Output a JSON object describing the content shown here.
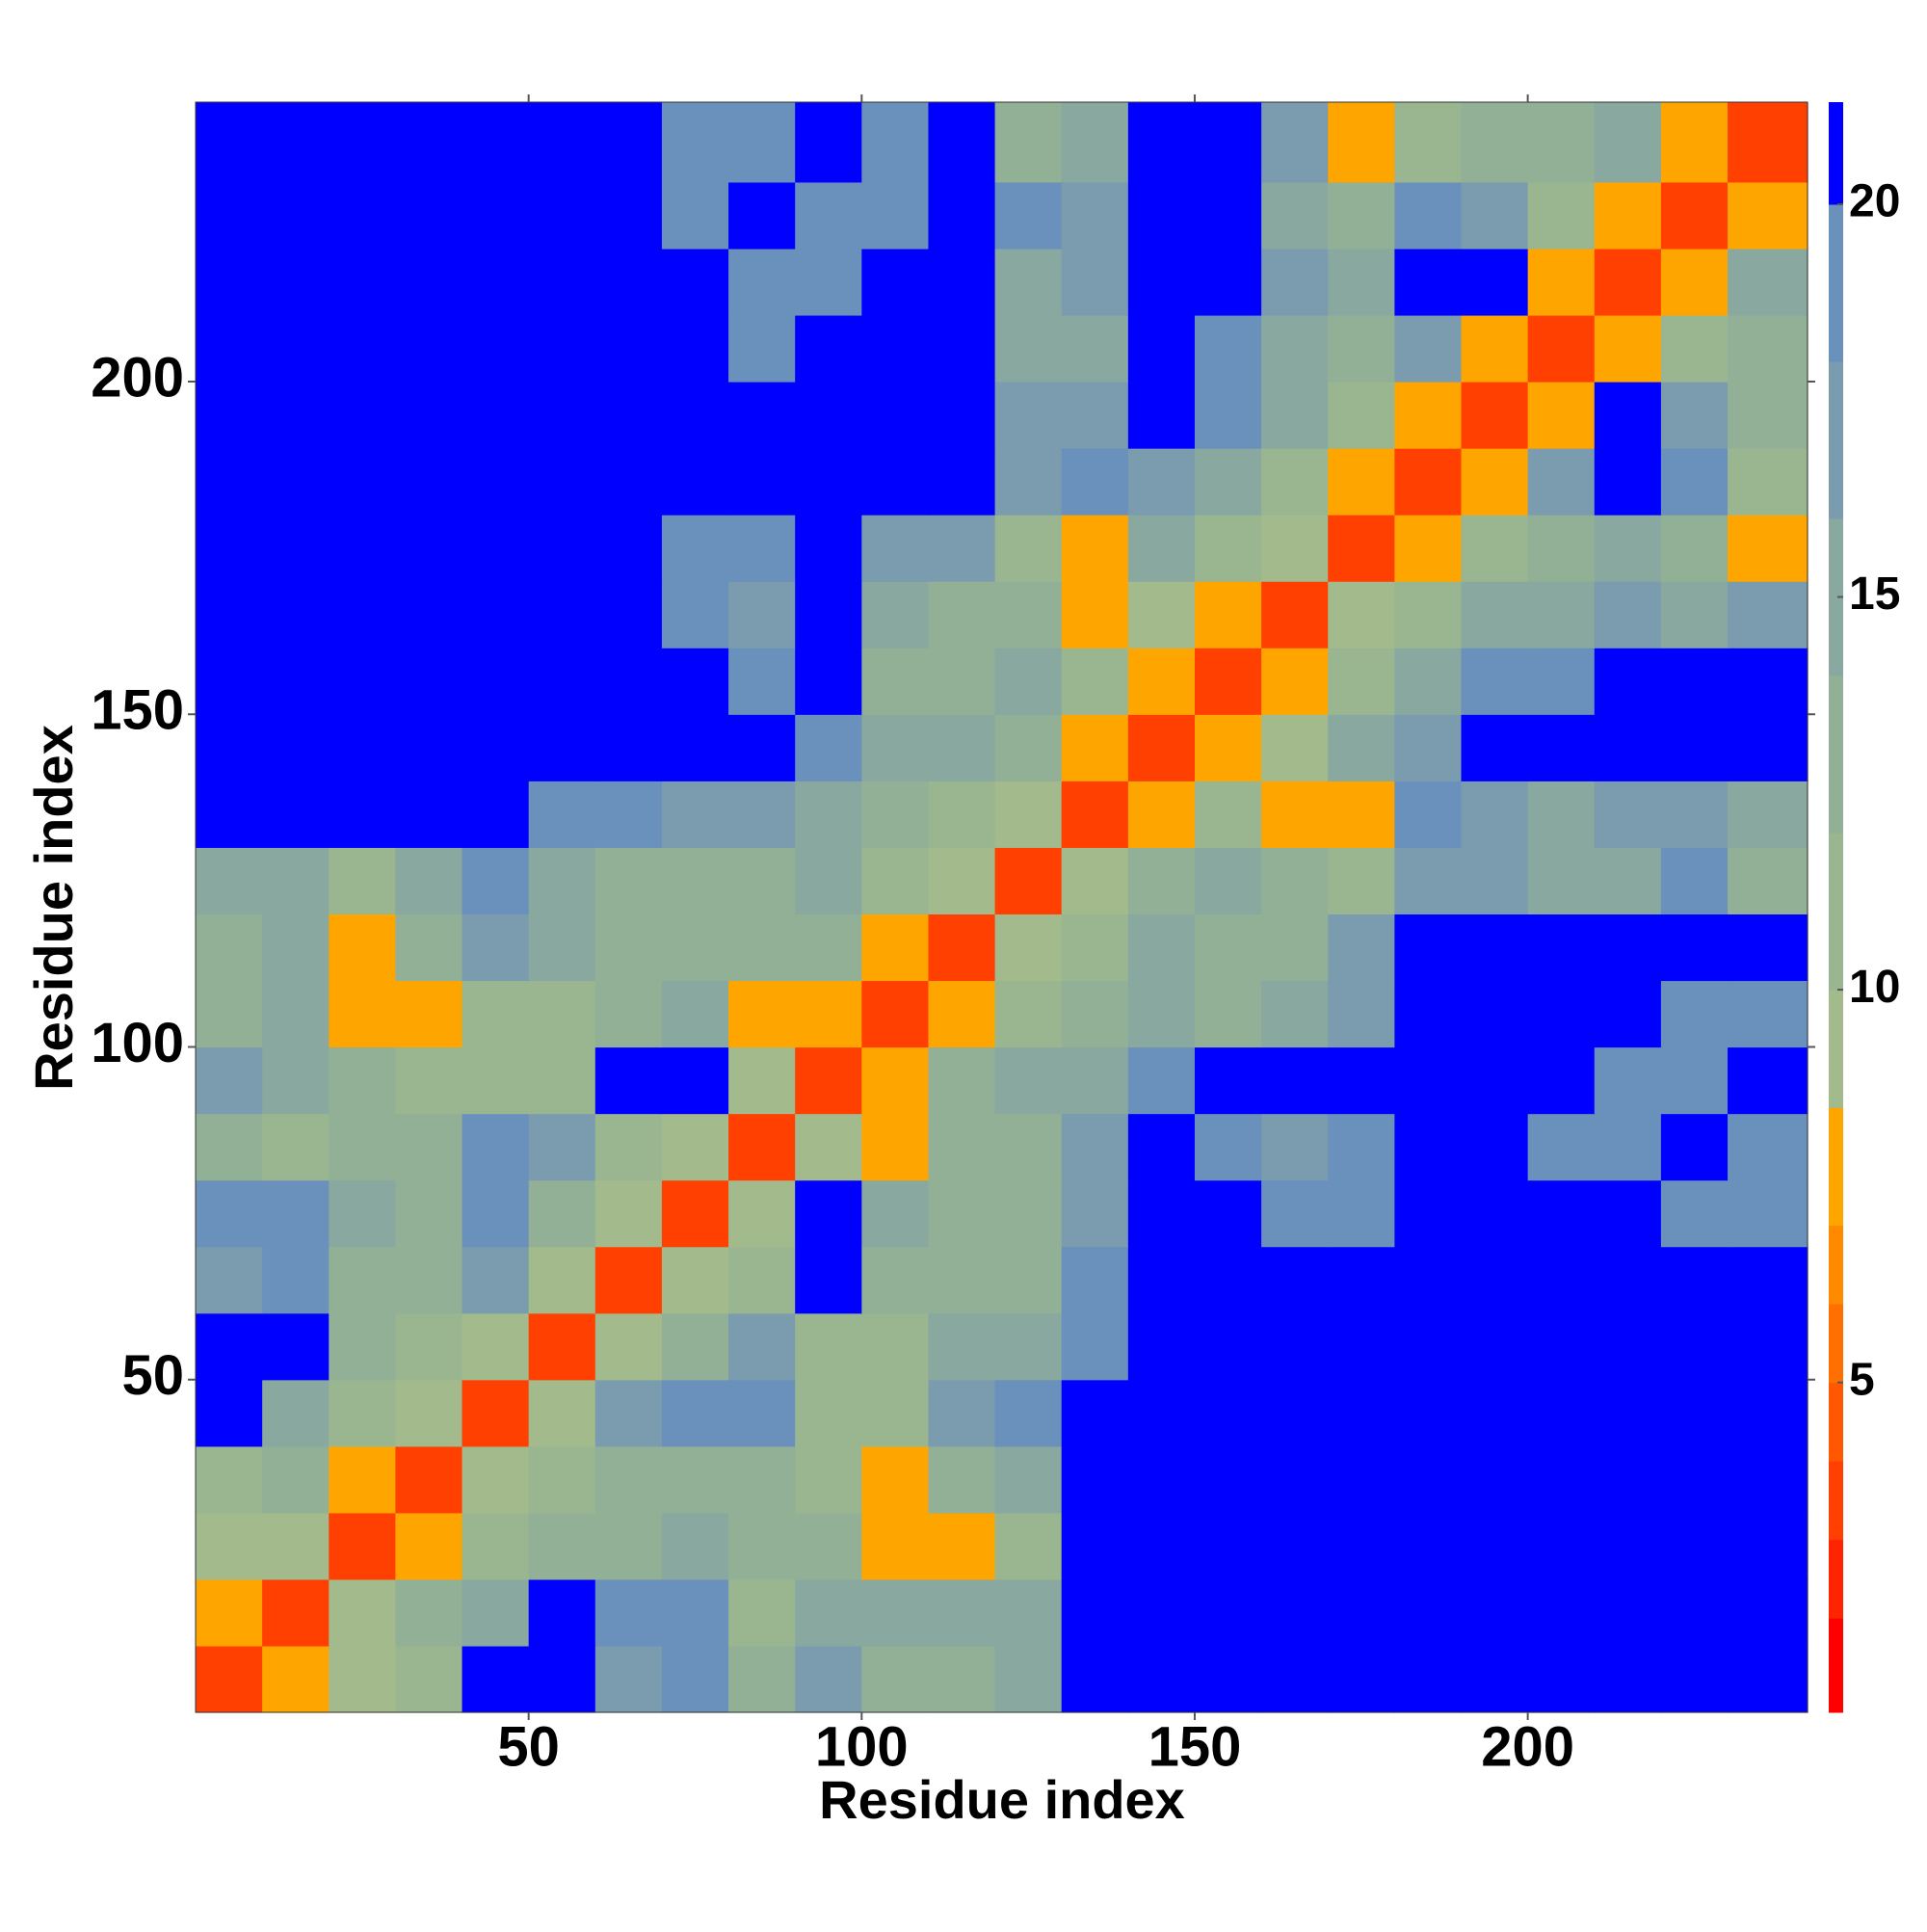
{
  "chart_data": {
    "type": "heatmap",
    "xlabel": "Residue index",
    "ylabel": "Residue index",
    "xlim": [
      0,
      242
    ],
    "ylim": [
      0,
      242
    ],
    "xticks": [
      50,
      100,
      150,
      200
    ],
    "yticks": [
      50,
      100,
      150,
      200
    ],
    "bins": [
      0,
      10,
      20,
      30,
      40,
      50,
      60,
      70,
      80,
      90,
      100,
      110,
      120,
      130,
      140,
      150,
      160,
      170,
      180,
      190,
      200,
      210,
      220,
      230,
      242
    ],
    "z": [
      [
        3,
        7,
        9,
        10,
        21,
        21,
        16,
        18,
        12,
        16,
        13,
        13,
        14,
        21,
        21,
        21,
        21,
        21,
        21,
        21,
        21,
        21,
        21,
        21
      ],
      [
        7,
        3,
        9,
        12,
        15,
        21,
        18,
        18,
        11,
        15,
        14,
        14,
        15,
        21,
        21,
        21,
        21,
        21,
        21,
        21,
        21,
        21,
        21,
        21
      ],
      [
        9,
        9,
        3,
        8,
        10,
        12,
        13,
        14,
        13,
        13,
        8,
        8,
        11,
        21,
        21,
        21,
        21,
        21,
        21,
        21,
        21,
        21,
        21,
        21
      ],
      [
        10,
        12,
        8,
        3,
        9,
        11,
        12,
        13,
        12,
        11,
        7,
        13,
        14,
        21,
        21,
        21,
        21,
        21,
        21,
        21,
        21,
        21,
        21,
        21
      ],
      [
        21,
        15,
        10,
        9,
        3,
        9,
        16,
        19,
        18,
        11,
        10,
        16,
        18,
        21,
        21,
        21,
        21,
        21,
        21,
        21,
        21,
        21,
        21,
        21
      ],
      [
        21,
        21,
        12,
        11,
        9,
        3,
        9,
        13,
        17,
        11,
        10,
        14,
        15,
        19,
        21,
        21,
        21,
        21,
        21,
        21,
        21,
        21,
        21,
        21
      ],
      [
        16,
        18,
        13,
        12,
        16,
        9,
        3,
        9,
        11,
        20,
        12,
        12,
        13,
        18,
        21,
        21,
        21,
        21,
        21,
        21,
        21,
        21,
        21,
        21
      ],
      [
        18,
        18,
        14,
        13,
        19,
        13,
        9,
        3,
        9,
        20,
        14,
        13,
        13,
        16,
        21,
        21,
        18,
        18,
        21,
        21,
        21,
        21,
        19,
        19
      ],
      [
        12,
        11,
        13,
        12,
        18,
        17,
        11,
        9,
        3,
        9,
        7,
        12,
        12,
        17,
        21,
        19,
        17,
        18,
        21,
        21,
        19,
        19,
        21,
        19
      ],
      [
        16,
        15,
        13,
        11,
        11,
        11,
        20,
        20,
        9,
        3,
        8,
        13,
        15,
        14,
        18,
        21,
        21,
        21,
        21,
        21,
        20,
        19,
        19,
        21
      ],
      [
        13,
        14,
        8,
        7,
        10,
        10,
        12,
        14,
        7,
        8,
        3,
        8,
        11,
        12,
        14,
        13,
        15,
        16,
        21,
        21,
        20,
        21,
        18,
        18
      ],
      [
        13,
        14,
        8,
        13,
        16,
        14,
        12,
        13,
        12,
        13,
        8,
        3,
        9,
        11,
        14,
        12,
        13,
        17,
        21,
        21,
        21,
        21,
        21,
        21
      ],
      [
        14,
        15,
        11,
        14,
        18,
        15,
        13,
        13,
        12,
        15,
        11,
        9,
        3,
        9,
        12,
        14,
        13,
        11,
        16,
        17,
        14,
        15,
        18,
        13
      ],
      [
        21,
        21,
        21,
        21,
        21,
        19,
        18,
        16,
        17,
        14,
        12,
        11,
        9,
        3,
        8,
        10,
        8,
        8,
        19,
        17,
        15,
        16,
        17,
        14
      ],
      [
        21,
        21,
        21,
        21,
        21,
        21,
        21,
        21,
        21,
        18,
        14,
        14,
        12,
        8,
        3,
        8,
        9,
        14,
        17,
        20,
        21,
        21,
        21,
        21
      ],
      [
        21,
        21,
        21,
        21,
        21,
        21,
        21,
        21,
        19,
        21,
        13,
        12,
        14,
        10,
        8,
        3,
        8,
        10,
        14,
        18,
        19,
        21,
        21,
        21
      ],
      [
        21,
        21,
        21,
        21,
        21,
        21,
        21,
        18,
        17,
        21,
        15,
        13,
        13,
        8,
        9,
        8,
        3,
        9,
        11,
        14,
        15,
        16,
        15,
        17
      ],
      [
        21,
        21,
        21,
        21,
        21,
        21,
        21,
        18,
        18,
        21,
        16,
        17,
        11,
        8,
        14,
        10,
        9,
        3,
        8,
        11,
        12,
        15,
        12,
        8
      ],
      [
        21,
        21,
        21,
        21,
        21,
        21,
        21,
        21,
        21,
        21,
        21,
        21,
        16,
        19,
        17,
        14,
        11,
        8,
        3,
        7,
        17,
        21,
        19,
        11
      ],
      [
        21,
        21,
        21,
        21,
        21,
        21,
        21,
        21,
        21,
        21,
        21,
        21,
        17,
        17,
        20,
        18,
        14,
        11,
        7,
        3,
        8,
        21,
        17,
        12
      ],
      [
        21,
        21,
        21,
        21,
        21,
        21,
        21,
        21,
        19,
        20,
        20,
        21,
        14,
        15,
        21,
        19,
        15,
        12,
        17,
        8,
        3,
        7,
        11,
        12
      ],
      [
        21,
        21,
        21,
        21,
        21,
        21,
        21,
        21,
        19,
        19,
        21,
        21,
        15,
        16,
        21,
        21,
        16,
        15,
        21,
        21,
        7,
        3,
        7,
        15
      ],
      [
        21,
        21,
        21,
        21,
        21,
        21,
        21,
        19,
        21,
        19,
        18,
        21,
        18,
        17,
        21,
        21,
        15,
        12,
        19,
        17,
        11,
        7,
        3,
        7
      ],
      [
        21,
        21,
        21,
        21,
        21,
        21,
        21,
        19,
        19,
        21,
        18,
        21,
        13,
        14,
        21,
        21,
        17,
        8,
        11,
        12,
        12,
        15,
        7,
        3
      ]
    ],
    "levels": [
      0.8,
      2,
      3,
      4,
      5,
      6,
      7,
      8.5,
      10,
      12,
      14,
      16,
      18,
      20,
      21.3
    ],
    "colors": [
      "#ff0000",
      "#ff2400",
      "#ff4000",
      "#ff5800",
      "#ff7000",
      "#ff8a00",
      "#ffa500",
      "#a3ba8c",
      "#9ab690",
      "#92b096",
      "#88a8a0",
      "#7a9cae",
      "#6a90bc",
      "#0000ff"
    ],
    "cticks": [
      5,
      10,
      15,
      20
    ]
  }
}
